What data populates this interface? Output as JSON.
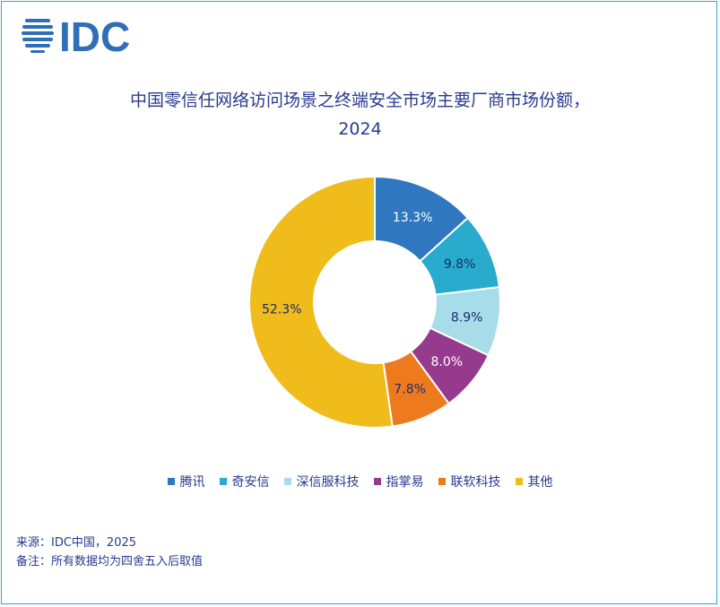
{
  "brand": {
    "logo_text": "IDC",
    "logo_color": "#2f6fb6"
  },
  "title_line1": "中国零信任网络访问场景之终端安全市场主要厂商市场份额，",
  "title_line2": "2024",
  "chart_data": {
    "type": "pie",
    "donut": true,
    "title": "中国零信任网络访问场景之终端安全市场主要厂商市场份额，2024",
    "legend_position": "bottom",
    "slices": [
      {
        "name": "腾讯",
        "value": 13.3,
        "label": "13.3%",
        "color": "#2f78bf",
        "label_color": "#ffffff"
      },
      {
        "name": "奇安信",
        "value": 9.8,
        "label": "9.8%",
        "color": "#28abcc",
        "label_color": "#1e2a6e"
      },
      {
        "name": "深信服科技",
        "value": 8.9,
        "label": "8.9%",
        "color": "#a7dde8",
        "label_color": "#1e2a6e"
      },
      {
        "name": "指掌易",
        "value": 8.0,
        "label": "8.0%",
        "color": "#963a8d",
        "label_color": "#ffffff"
      },
      {
        "name": "联软科技",
        "value": 7.8,
        "label": "7.8%",
        "color": "#ee7a1e",
        "label_color": "#1e2a6e"
      },
      {
        "name": "其他",
        "value": 52.3,
        "label": "52.3%",
        "color": "#f0bc1c",
        "label_color": "#1e2a6e"
      }
    ]
  },
  "footer": {
    "source": "来源：IDC中国，2025",
    "note": "备注：所有数据均为四舍五入后取值"
  }
}
